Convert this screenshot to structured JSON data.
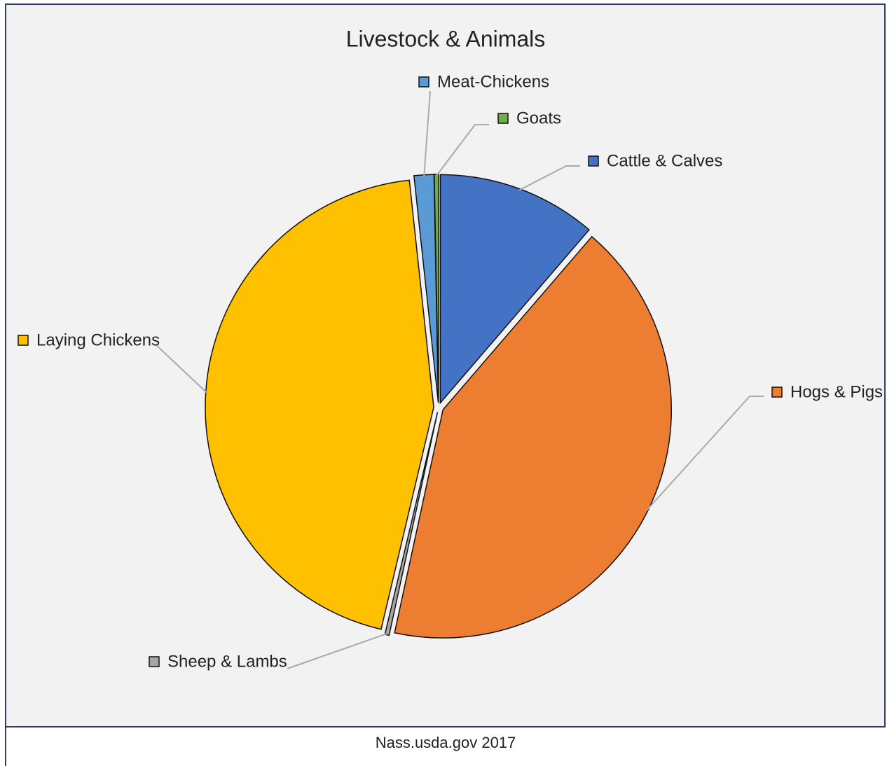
{
  "chart_data": {
    "type": "pie",
    "title": "Livestock & Animals",
    "categories": [
      "Cattle & Calves",
      "Hogs & Pigs",
      "Sheep & Lambs",
      "Laying Chickens",
      "Meat-Chickens",
      "Goats"
    ],
    "values": [
      11.3,
      42.1,
      0.3,
      44.6,
      1.4,
      0.3
    ],
    "colors": [
      "#4472c4",
      "#ed7d31",
      "#a5a5a5",
      "#ffc000",
      "#5b9bd5",
      "#70ad47"
    ],
    "source": "Nass.usda.gov 2017"
  }
}
